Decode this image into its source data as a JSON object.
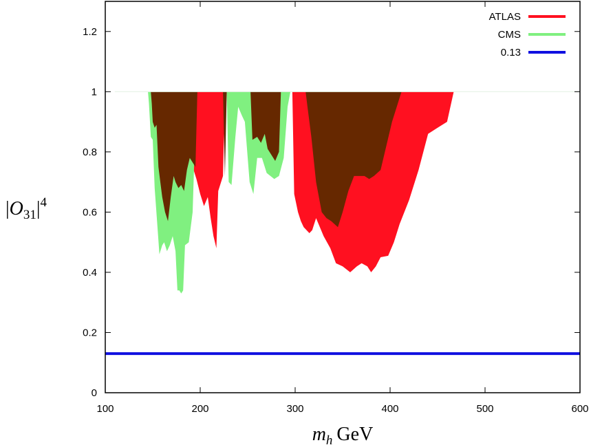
{
  "chart_data": {
    "type": "area",
    "xlabel": "m_h GeV",
    "xlabel_parts": {
      "var": "m",
      "sub": "h",
      "unit": "GeV"
    },
    "ylabel": "|O_31|^4",
    "ylabel_parts": {
      "open": "|",
      "sym": "O",
      "sub": "31",
      "close": "|",
      "sup": "4"
    },
    "xlim": [
      100,
      600
    ],
    "ylim": [
      0,
      1.3
    ],
    "x_ticks": [
      100,
      200,
      300,
      400,
      500,
      600
    ],
    "y_ticks": [
      0,
      0.2,
      0.4,
      0.6,
      0.8,
      1,
      1.2
    ],
    "x_tick_labels": [
      "100",
      "200",
      "300",
      "400",
      "500",
      "600"
    ],
    "y_tick_labels": [
      "0",
      "0.2",
      "0.4",
      "0.6",
      "0.8",
      "1",
      "1.2"
    ],
    "grid": false,
    "legend_position": "top-right",
    "overlap_color": "#662800",
    "series": [
      {
        "name": "ATLAS",
        "color": "#ff1020",
        "regions": [
          [
            [
              148,
              1
            ],
            [
              150,
              0.85
            ],
            [
              155,
              0.78
            ],
            [
              160,
              0.6
            ],
            [
              165,
              0.56
            ],
            [
              170,
              0.72
            ],
            [
              175,
              0.68
            ],
            [
              178,
              0.7
            ],
            [
              182,
              0.65
            ],
            [
              186,
              0.75
            ],
            [
              190,
              0.82
            ],
            [
              192,
              0.75
            ],
            [
              196,
              0.71
            ],
            [
              200,
              0.66
            ],
            [
              204,
              0.62
            ],
            [
              208,
              0.65
            ],
            [
              211,
              0.58
            ],
            [
              214,
              0.52
            ],
            [
              217,
              0.48
            ],
            [
              219,
              0.67
            ],
            [
              224,
              0.72
            ],
            [
              226,
              1
            ]
          ],
          [
            [
              253,
              1
            ],
            [
              258,
              0.83
            ],
            [
              262,
              0.82
            ],
            [
              266,
              0.85
            ],
            [
              270,
              0.8
            ],
            [
              275,
              0.78
            ],
            [
              280,
              0.75
            ],
            [
              285,
              1
            ]
          ],
          [
            [
              297,
              1
            ],
            [
              299,
              0.66
            ],
            [
              303,
              0.6
            ],
            [
              306,
              0.57
            ],
            [
              309,
              0.55
            ],
            [
              315,
              0.53
            ],
            [
              318,
              0.54
            ],
            [
              322,
              0.58
            ],
            [
              330,
              0.52
            ],
            [
              337,
              0.48
            ],
            [
              343,
              0.43
            ],
            [
              350,
              0.42
            ],
            [
              358,
              0.4
            ],
            [
              365,
              0.42
            ],
            [
              370,
              0.43
            ],
            [
              376,
              0.42
            ],
            [
              380,
              0.4
            ],
            [
              385,
              0.42
            ],
            [
              390,
              0.45
            ],
            [
              398,
              0.455
            ],
            [
              404,
              0.5
            ],
            [
              410,
              0.56
            ],
            [
              420,
              0.64
            ],
            [
              430,
              0.74
            ],
            [
              440,
              0.86
            ],
            [
              450,
              0.88
            ],
            [
              460,
              0.9
            ],
            [
              467,
              1
            ]
          ]
        ]
      },
      {
        "name": "CMS",
        "color": "#80f080",
        "regions": [
          [
            [
              145,
              1
            ],
            [
              146,
              0.96
            ],
            [
              148,
              0.85
            ],
            [
              150,
              0.84
            ],
            [
              152,
              0.68
            ],
            [
              155,
              0.55
            ],
            [
              157,
              0.46
            ],
            [
              160,
              0.49
            ],
            [
              162,
              0.5
            ],
            [
              165,
              0.47
            ],
            [
              168,
              0.49
            ],
            [
              171,
              0.52
            ],
            [
              174,
              0.47
            ],
            [
              176,
              0.34
            ],
            [
              178,
              0.34
            ],
            [
              180,
              0.33
            ],
            [
              182,
              0.34
            ],
            [
              184,
              0.49
            ],
            [
              188,
              0.5
            ],
            [
              192,
              0.6
            ],
            [
              196,
              1
            ]
          ],
          [
            [
              228,
              1
            ],
            [
              230,
              0.7
            ],
            [
              233,
              0.69
            ],
            [
              237,
              0.85
            ],
            [
              240,
              0.95
            ],
            [
              244,
              0.92
            ],
            [
              247,
              0.9
            ],
            [
              252,
              0.7
            ],
            [
              256,
              0.66
            ],
            [
              260,
              0.78
            ],
            [
              265,
              0.78
            ],
            [
              270,
              0.73
            ],
            [
              274,
              0.72
            ],
            [
              278,
              0.71
            ],
            [
              283,
              0.72
            ],
            [
              288,
              0.78
            ],
            [
              292,
              0.95
            ],
            [
              295,
              1
            ]
          ]
        ]
      },
      {
        "name": "0.13",
        "color": "#1010e0",
        "x": [
          100,
          600
        ],
        "values": [
          0.13,
          0.13
        ]
      }
    ],
    "overlap_regions": [
      [
        [
          148,
          1
        ],
        [
          149,
          0.96
        ],
        [
          150,
          0.9
        ],
        [
          152,
          0.88
        ],
        [
          154,
          0.89
        ],
        [
          156,
          0.75
        ],
        [
          158,
          0.7
        ],
        [
          160,
          0.65
        ],
        [
          163,
          0.6
        ],
        [
          166,
          0.57
        ],
        [
          169,
          0.65
        ],
        [
          172,
          0.72
        ],
        [
          174,
          0.7
        ],
        [
          177,
          0.68
        ],
        [
          180,
          0.69
        ],
        [
          183,
          0.67
        ],
        [
          186,
          0.74
        ],
        [
          189,
          0.78
        ],
        [
          191,
          0.77
        ],
        [
          195,
          0.75
        ],
        [
          197,
          1
        ]
      ],
      [
        [
          224,
          1
        ],
        [
          226,
          0.72
        ],
        [
          228,
          1
        ]
      ],
      [
        [
          253,
          1
        ],
        [
          255,
          0.84
        ],
        [
          260,
          0.85
        ],
        [
          264,
          0.83
        ],
        [
          268,
          0.86
        ],
        [
          271,
          0.81
        ],
        [
          275,
          0.79
        ],
        [
          279,
          0.77
        ],
        [
          283,
          0.8
        ],
        [
          285,
          1
        ]
      ],
      [
        [
          311,
          1
        ],
        [
          313,
          0.95
        ],
        [
          317,
          0.85
        ],
        [
          322,
          0.7
        ],
        [
          328,
          0.6
        ],
        [
          333,
          0.58
        ],
        [
          338,
          0.57
        ],
        [
          345,
          0.55
        ],
        [
          350,
          0.6
        ],
        [
          356,
          0.67
        ],
        [
          362,
          0.72
        ],
        [
          368,
          0.72
        ],
        [
          373,
          0.72
        ],
        [
          378,
          0.71
        ],
        [
          383,
          0.72
        ],
        [
          390,
          0.74
        ],
        [
          396,
          0.82
        ],
        [
          402,
          0.9
        ],
        [
          412,
          1
        ]
      ]
    ]
  }
}
